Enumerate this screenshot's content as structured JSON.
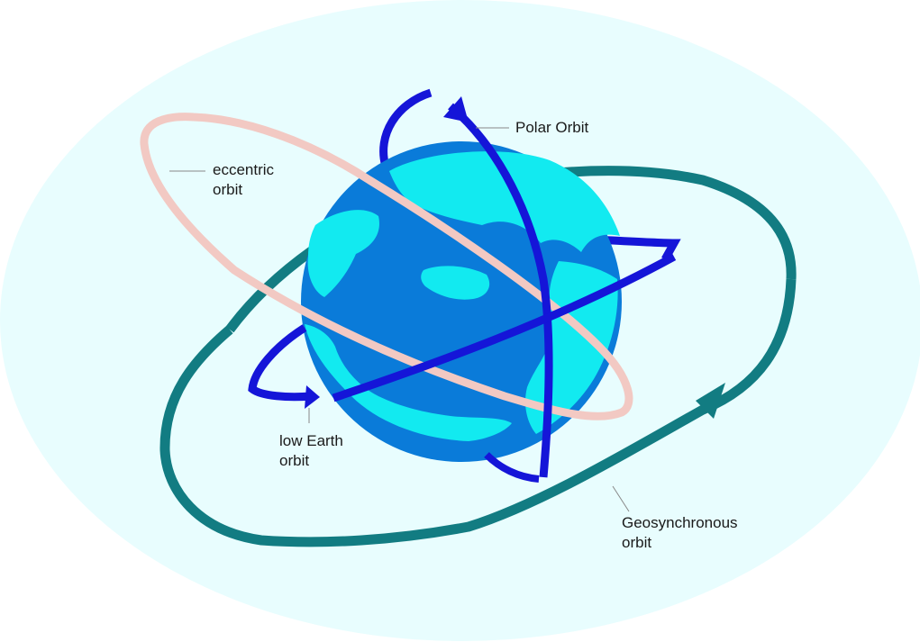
{
  "colors": {
    "background_halo": "#e8fdfe",
    "ocean": "#0a7bd9",
    "land": "#12eaf0",
    "geosynchronous_orbit": "#127c82",
    "eccentric_orbit": "#f2c9c3",
    "polar_orbit": "#1515d8",
    "low_earth_orbit": "#1515d8",
    "leader_line": "#888888"
  },
  "labels": {
    "polar": "Polar Orbit",
    "eccentric": {
      "line1": "eccentric",
      "line2": "orbit"
    },
    "low_earth": {
      "line1": "low Earth",
      "line2": "orbit"
    },
    "geosynchronous": {
      "line1": "Geosynchronous",
      "line2": "orbit"
    }
  }
}
